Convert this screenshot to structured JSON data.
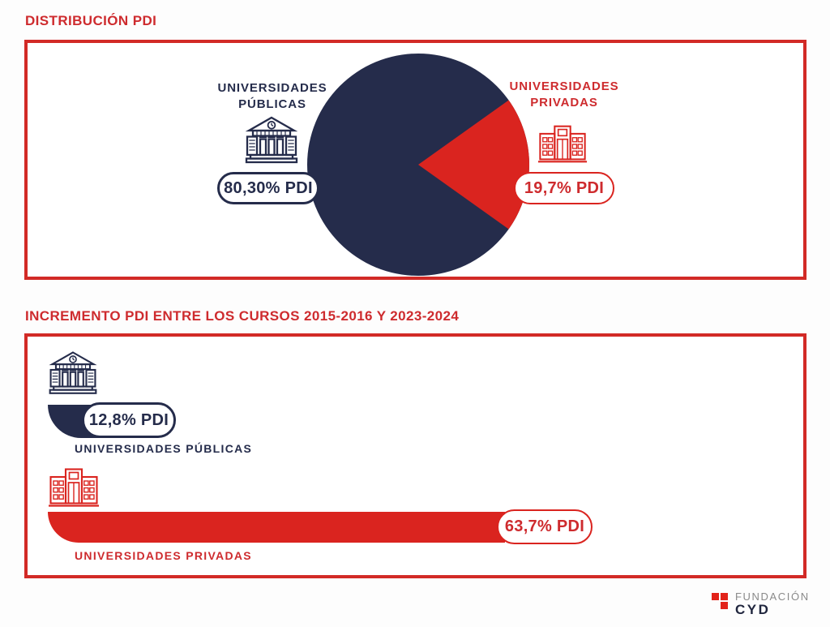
{
  "colors": {
    "navy": "#252C4B",
    "red": "#DA241F",
    "red_text": "#CE2B2E",
    "panel_border": "#D22A26",
    "logo_gray": "#8A8A8A"
  },
  "section1": {
    "title": "DISTRIBUCIÓN PDI",
    "public": {
      "label_line1": "UNIVERSIDADES",
      "label_line2": "PÚBLICAS",
      "value_label": "80,30% PDI",
      "icon": "public-university-building-icon"
    },
    "private": {
      "label_line1": "UNIVERSIDADES",
      "label_line2": "PRIVADAS",
      "value_label": "19,7% PDI",
      "icon": "private-university-building-icon"
    }
  },
  "section2": {
    "title": "INCREMENTO PDI ENTRE LOS CURSOS 2015-2016 Y 2023-2024",
    "bars": [
      {
        "label": "UNIVERSIDADES PÚBLICAS",
        "value_label": "12,8% PDI"
      },
      {
        "label": "UNIVERSIDADES PRIVADAS",
        "value_label": "63,7% PDI"
      }
    ]
  },
  "footer": {
    "brand_top": "FUNDACIÓN",
    "brand_bottom": "CYD"
  },
  "chart_data": [
    {
      "type": "pie",
      "title": "DISTRIBUCIÓN PDI",
      "slices": [
        {
          "label": "Universidades públicas",
          "value": 80.3,
          "color": "#252C4B",
          "value_label": "80,30% PDI"
        },
        {
          "label": "Universidades privadas",
          "value": 19.7,
          "color": "#DA241F",
          "value_label": "19,7% PDI"
        }
      ],
      "legend_position": "sides",
      "unit": "% PDI"
    },
    {
      "type": "bar",
      "title": "INCREMENTO PDI ENTRE LOS CURSOS 2015-2016 Y 2023-2024",
      "orientation": "horizontal",
      "categories": [
        "Universidades públicas",
        "Universidades privadas"
      ],
      "values": [
        12.8,
        63.7
      ],
      "colors": [
        "#252C4B",
        "#DA241F"
      ],
      "unit": "% PDI",
      "xlim": [
        0,
        63.7
      ],
      "grid": false
    }
  ]
}
